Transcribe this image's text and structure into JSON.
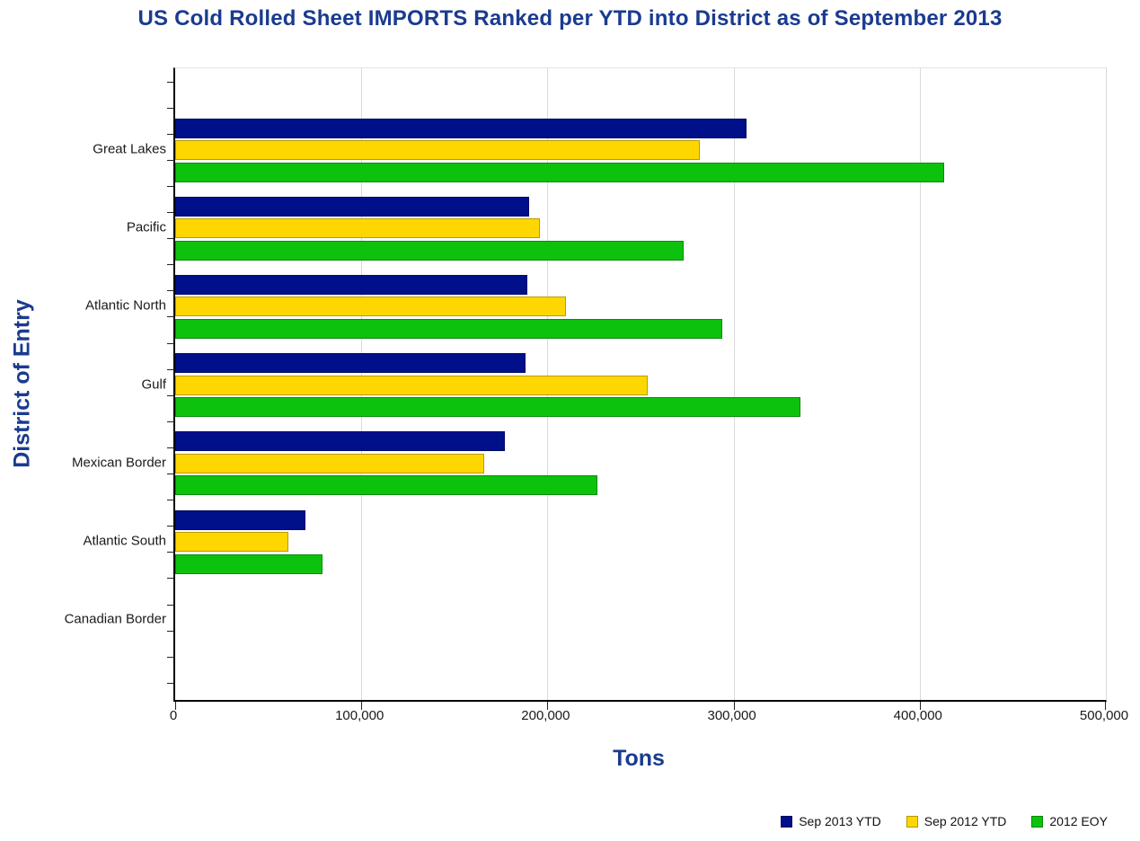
{
  "title": "US Cold Rolled Sheet IMPORTS Ranked per YTD into District as of September 2013",
  "colors": {
    "title_text": "#1a3b8f",
    "axis_label_text": "#1a3b8f",
    "tick_text": "#1a1a1a",
    "gridline": "#d9d9d9",
    "axis_line": "#000000"
  },
  "chart_data": {
    "type": "bar",
    "orientation": "horizontal",
    "title": "US Cold Rolled Sheet IMPORTS Ranked per YTD into District as of September 2013",
    "xlabel": "Tons",
    "ylabel": "District of Entry",
    "xlim": [
      0,
      500000
    ],
    "xticks": [
      0,
      100000,
      200000,
      300000,
      400000,
      500000
    ],
    "xtick_labels": [
      "0",
      "100,000",
      "200,000",
      "300,000",
      "400,000",
      "500,000"
    ],
    "grid": true,
    "legend_position": "bottom-right",
    "categories": [
      "Great Lakes",
      "Pacific",
      "Atlantic North",
      "Gulf",
      "Mexican Border",
      "Atlantic South",
      "Canadian Border"
    ],
    "series": [
      {
        "name": "Sep 2013 YTD",
        "color": "#00108b",
        "values": [
          307000,
          190000,
          189000,
          188000,
          177000,
          70000,
          0
        ]
      },
      {
        "name": "Sep 2012 YTD",
        "color": "#ffd700",
        "values": [
          282000,
          196000,
          210000,
          254000,
          166000,
          61000,
          0
        ]
      },
      {
        "name": "2012 EOY",
        "color": "#0dc20d",
        "values": [
          413000,
          273000,
          294000,
          336000,
          227000,
          79000,
          0
        ]
      }
    ]
  }
}
